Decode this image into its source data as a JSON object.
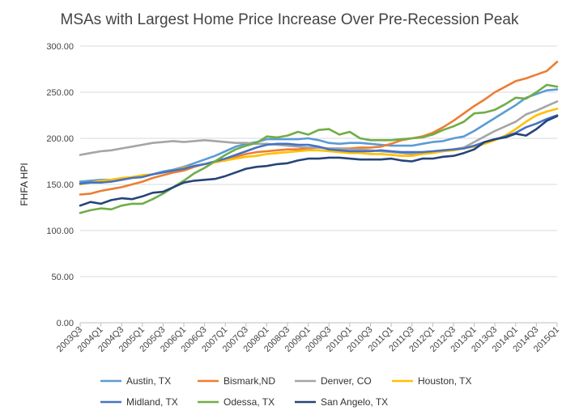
{
  "chart_data": {
    "type": "line",
    "title": "MSAs with Largest Home Price Increase Over Pre-Recession Peak",
    "xlabel": "",
    "ylabel": "FHFA HPI",
    "ylim": [
      0,
      300
    ],
    "yticks": [
      "0.00",
      "50.00",
      "100.00",
      "150.00",
      "200.00",
      "250.00",
      "300.00"
    ],
    "grid": true,
    "legend_position": "bottom",
    "x": [
      "2003Q3",
      "2003Q4",
      "2004Q1",
      "2004Q2",
      "2004Q3",
      "2004Q4",
      "2005Q1",
      "2005Q2",
      "2005Q3",
      "2005Q4",
      "2006Q1",
      "2006Q2",
      "2006Q3",
      "2006Q4",
      "2007Q1",
      "2007Q2",
      "2007Q3",
      "2007Q4",
      "2008Q1",
      "2008Q2",
      "2008Q3",
      "2008Q4",
      "2009Q1",
      "2009Q2",
      "2009Q3",
      "2009Q4",
      "2010Q1",
      "2010Q2",
      "2010Q3",
      "2010Q4",
      "2011Q1",
      "2011Q2",
      "2011Q3",
      "2011Q4",
      "2012Q1",
      "2012Q2",
      "2012Q3",
      "2012Q4",
      "2013Q1",
      "2013Q2",
      "2013Q3",
      "2013Q4",
      "2014Q1",
      "2014Q2",
      "2014Q3",
      "2014Q4",
      "2015Q1"
    ],
    "xtick_labels": [
      "2003Q3",
      "2004Q1",
      "2004Q3",
      "2005Q1",
      "2005Q3",
      "2006Q1",
      "2006Q3",
      "2007Q1",
      "2007Q3",
      "2008Q1",
      "2008Q3",
      "2009Q1",
      "2009Q3",
      "2010Q1",
      "2010Q3",
      "2011Q1",
      "2011Q3",
      "2012Q1",
      "2012Q3",
      "2013Q1",
      "2013Q3",
      "2014Q1",
      "2014Q3",
      "2015Q1"
    ],
    "series": [
      {
        "name": "Austin, TX",
        "color": "#5b9bd5",
        "values": [
          153,
          154,
          155,
          155,
          156,
          157,
          159,
          161,
          164,
          166,
          169,
          173,
          177,
          181,
          186,
          191,
          194,
          196,
          199,
          199,
          199,
          199,
          200,
          198,
          195,
          194,
          195,
          195,
          194,
          193,
          192,
          192,
          192,
          194,
          196,
          197,
          200,
          202,
          208,
          215,
          222,
          229,
          236,
          244,
          248,
          252,
          253
        ]
      },
      {
        "name": "Bismark,ND",
        "color": "#ed7d31",
        "values": [
          139,
          140,
          143,
          145,
          147,
          150,
          153,
          157,
          160,
          163,
          165,
          169,
          172,
          174,
          176,
          180,
          183,
          185,
          186,
          187,
          188,
          188,
          189,
          190,
          189,
          189,
          189,
          190,
          190,
          191,
          194,
          198,
          200,
          202,
          206,
          212,
          219,
          227,
          235,
          242,
          250,
          256,
          262,
          265,
          269,
          273,
          283
        ]
      },
      {
        "name": "Denver, CO",
        "color": "#a5a5a5",
        "values": [
          182,
          184,
          186,
          187,
          189,
          191,
          193,
          195,
          196,
          197,
          196,
          197,
          198,
          197,
          196,
          195,
          195,
          194,
          194,
          193,
          192,
          191,
          190,
          190,
          189,
          189,
          188,
          188,
          187,
          186,
          185,
          184,
          183,
          184,
          185,
          186,
          188,
          190,
          196,
          202,
          208,
          213,
          218,
          226,
          230,
          235,
          240
        ]
      },
      {
        "name": "Houston, TX",
        "color": "#ffc000",
        "values": [
          150,
          152,
          154,
          155,
          157,
          158,
          160,
          161,
          163,
          165,
          168,
          170,
          172,
          174,
          176,
          178,
          180,
          181,
          183,
          184,
          185,
          186,
          187,
          187,
          186,
          185,
          184,
          184,
          183,
          183,
          182,
          181,
          181,
          183,
          184,
          186,
          187,
          189,
          191,
          194,
          198,
          203,
          210,
          218,
          225,
          229,
          232
        ]
      },
      {
        "name": "Midland, TX",
        "color": "#4472c4",
        "values": [
          151,
          152,
          152,
          153,
          155,
          157,
          158,
          161,
          163,
          165,
          167,
          170,
          172,
          175,
          178,
          182,
          186,
          190,
          193,
          194,
          194,
          193,
          193,
          191,
          188,
          187,
          186,
          186,
          186,
          187,
          186,
          185,
          185,
          185,
          186,
          187,
          188,
          189,
          192,
          196,
          199,
          202,
          206,
          212,
          216,
          221,
          225
        ]
      },
      {
        "name": "Odessa, TX",
        "color": "#70ad47",
        "values": [
          119,
          122,
          124,
          123,
          127,
          129,
          129,
          134,
          140,
          147,
          154,
          162,
          168,
          175,
          182,
          188,
          192,
          195,
          202,
          201,
          203,
          207,
          204,
          209,
          210,
          204,
          207,
          200,
          198,
          198,
          198,
          199,
          200,
          201,
          204,
          209,
          213,
          218,
          227,
          228,
          231,
          237,
          244,
          243,
          250,
          258,
          256
        ]
      },
      {
        "name": "San Angelo, TX",
        "color": "#264478",
        "values": [
          127,
          131,
          129,
          133,
          135,
          134,
          137,
          141,
          142,
          147,
          152,
          154,
          155,
          156,
          159,
          163,
          167,
          169,
          170,
          172,
          173,
          176,
          178,
          178,
          179,
          179,
          178,
          177,
          177,
          177,
          178,
          176,
          175,
          178,
          178,
          180,
          181,
          184,
          188,
          196,
          199,
          201,
          205,
          203,
          210,
          219,
          224
        ]
      }
    ]
  }
}
